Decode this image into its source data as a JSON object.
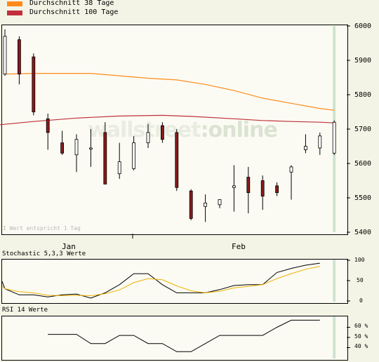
{
  "legend": {
    "items": [
      {
        "label": "Durchschnitt 38 Tage",
        "color": "#ff8a1a"
      },
      {
        "label": "Durchschnitt 100 Tage",
        "color": "#c0303a"
      }
    ]
  },
  "watermark": {
    "part1": "wallstreet",
    "part2": ":online"
  },
  "main_note": "1 Wert entspricht 1 Tag",
  "chart_data": [
    {
      "type": "candlestick",
      "title": "",
      "ylim": [
        5400,
        6000
      ],
      "y_ticks": [
        "6000",
        "5900",
        "5800",
        "5700",
        "5600",
        "5500",
        "5400"
      ],
      "x_labels": [
        "Jan",
        "Feb"
      ],
      "colors": {
        "up": "#ffffff",
        "down": "#8b1a1a",
        "highlight": "#cfe3cf"
      },
      "candles": [
        {
          "o": 5860,
          "h": 5990,
          "l": 5855,
          "c": 5970
        },
        {
          "o": 5960,
          "h": 5970,
          "l": 5830,
          "c": 5860
        },
        {
          "o": 5910,
          "h": 5920,
          "l": 5740,
          "c": 5750
        },
        {
          "o": 5730,
          "h": 5745,
          "l": 5640,
          "c": 5690
        },
        {
          "o": 5660,
          "h": 5695,
          "l": 5625,
          "c": 5630
        },
        {
          "o": 5625,
          "h": 5685,
          "l": 5575,
          "c": 5670
        },
        {
          "o": 5642,
          "h": 5700,
          "l": 5590,
          "c": 5645
        },
        {
          "o": 5690,
          "h": 5720,
          "l": 5540,
          "c": 5540
        },
        {
          "o": 5570,
          "h": 5660,
          "l": 5555,
          "c": 5605
        },
        {
          "o": 5585,
          "h": 5680,
          "l": 5580,
          "c": 5660
        },
        {
          "o": 5660,
          "h": 5715,
          "l": 5645,
          "c": 5690
        },
        {
          "o": 5710,
          "h": 5720,
          "l": 5660,
          "c": 5670
        },
        {
          "o": 5690,
          "h": 5700,
          "l": 5520,
          "c": 5530
        },
        {
          "o": 5520,
          "h": 5525,
          "l": 5435,
          "c": 5440
        },
        {
          "o": 5475,
          "h": 5510,
          "l": 5430,
          "c": 5485
        },
        {
          "o": 5480,
          "h": 5495,
          "l": 5470,
          "c": 5495
        },
        {
          "o": 5530,
          "h": 5595,
          "l": 5460,
          "c": 5535
        },
        {
          "o": 5560,
          "h": 5590,
          "l": 5455,
          "c": 5515
        },
        {
          "o": 5550,
          "h": 5565,
          "l": 5465,
          "c": 5505
        },
        {
          "o": 5535,
          "h": 5545,
          "l": 5505,
          "c": 5515
        },
        {
          "o": 5575,
          "h": 5595,
          "l": 5495,
          "c": 5590
        },
        {
          "o": 5640,
          "h": 5685,
          "l": 5630,
          "c": 5650
        },
        {
          "o": 5645,
          "h": 5690,
          "l": 5625,
          "c": 5680
        },
        {
          "o": 5630,
          "h": 5725,
          "l": 5625,
          "c": 5720
        }
      ],
      "series": [
        {
          "name": "Durchschnitt 38 Tage",
          "color": "#ff8a1a",
          "points": [
            [
              0,
              5860
            ],
            [
              2,
              5862
            ],
            [
              6,
              5862
            ],
            [
              10,
              5848
            ],
            [
              12,
              5843
            ],
            [
              14,
              5830
            ],
            [
              16,
              5812
            ],
            [
              18,
              5790
            ],
            [
              20,
              5775
            ],
            [
              22,
              5760
            ],
            [
              23,
              5755
            ]
          ]
        },
        {
          "name": "Durchschnitt 100 Tage",
          "color": "#c0303a",
          "points": [
            [
              -1,
              5710
            ],
            [
              2,
              5722
            ],
            [
              5,
              5732
            ],
            [
              8,
              5738
            ],
            [
              11,
              5740
            ],
            [
              13,
              5737
            ],
            [
              16,
              5730
            ],
            [
              18,
              5725
            ],
            [
              20,
              5722
            ],
            [
              22,
              5720
            ],
            [
              23,
              5718
            ]
          ]
        }
      ]
    },
    {
      "type": "line",
      "title": "Stochastic 5,3,3 Werte",
      "ylim": [
        0,
        100
      ],
      "y_ticks": [
        "100",
        "50",
        "0"
      ],
      "series": [
        {
          "name": "%K",
          "color": "#000000",
          "points": [
            [
              -1,
              48
            ],
            [
              0,
              30
            ],
            [
              1,
              15
            ],
            [
              2,
              15
            ],
            [
              3,
              10
            ],
            [
              4,
              15
            ],
            [
              5,
              17
            ],
            [
              6,
              7
            ],
            [
              7,
              20
            ],
            [
              8,
              40
            ],
            [
              9,
              67
            ],
            [
              10,
              67
            ],
            [
              11,
              40
            ],
            [
              12,
              20
            ],
            [
              13,
              20
            ],
            [
              14,
              20
            ],
            [
              15,
              28
            ],
            [
              16,
              38
            ],
            [
              17,
              40
            ],
            [
              18,
              40
            ],
            [
              19,
              70
            ],
            [
              20,
              80
            ],
            [
              21,
              88
            ],
            [
              22,
              93
            ]
          ]
        },
        {
          "name": "%D",
          "color": "#f0b000",
          "points": [
            [
              -1,
              37
            ],
            [
              0,
              30
            ],
            [
              1,
              23
            ],
            [
              2,
              20
            ],
            [
              3,
              14
            ],
            [
              4,
              13
            ],
            [
              5,
              14
            ],
            [
              6,
              13
            ],
            [
              7,
              18
            ],
            [
              8,
              27
            ],
            [
              9,
              45
            ],
            [
              10,
              55
            ],
            [
              11,
              52
            ],
            [
              12,
              37
            ],
            [
              13,
              25
            ],
            [
              14,
              20
            ],
            [
              15,
              24
            ],
            [
              16,
              32
            ],
            [
              17,
              36
            ],
            [
              18,
              40
            ],
            [
              19,
              55
            ],
            [
              20,
              67
            ],
            [
              21,
              78
            ],
            [
              22,
              85
            ]
          ]
        }
      ]
    },
    {
      "type": "line",
      "title": "RSI 14 Werte",
      "y_ticks": [
        "60 %",
        "50 %",
        "40 %"
      ],
      "ylim": [
        30,
        70
      ],
      "series": [
        {
          "name": "RSI",
          "color": "#000000",
          "points": [
            [
              3,
              53
            ],
            [
              4,
              53
            ],
            [
              5,
              53
            ],
            [
              6,
              44
            ],
            [
              7,
              44
            ],
            [
              8,
              52
            ],
            [
              9,
              52
            ],
            [
              10,
              44
            ],
            [
              11,
              44
            ],
            [
              12,
              36
            ],
            [
              13,
              36
            ],
            [
              14,
              44
            ],
            [
              15,
              52
            ],
            [
              16,
              52
            ],
            [
              17,
              52
            ],
            [
              18,
              52
            ],
            [
              19,
              60
            ],
            [
              20,
              67
            ],
            [
              21,
              67
            ],
            [
              22,
              67
            ]
          ]
        }
      ]
    }
  ]
}
